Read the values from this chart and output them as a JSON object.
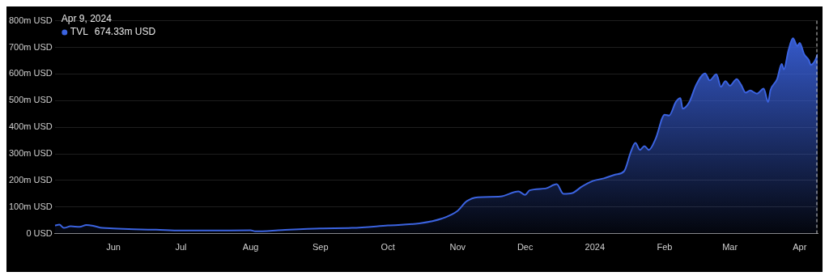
{
  "chart_data": {
    "type": "area",
    "x": [
      "2023-05-06",
      "2023-05-08",
      "2023-05-10",
      "2023-05-13",
      "2023-05-17",
      "2023-05-20",
      "2023-05-23",
      "2023-05-27",
      "2023-06-01",
      "2023-06-10",
      "2023-06-20",
      "2023-07-01",
      "2023-07-15",
      "2023-08-01",
      "2023-08-03",
      "2023-08-15",
      "2023-09-01",
      "2023-09-15",
      "2023-10-01",
      "2023-10-15",
      "2023-10-25",
      "2023-11-01",
      "2023-11-05",
      "2023-11-10",
      "2023-11-20",
      "2023-11-28",
      "2023-12-01",
      "2023-12-03",
      "2023-12-10",
      "2023-12-15",
      "2023-12-18",
      "2023-12-22",
      "2023-12-26",
      "2023-12-31",
      "2024-01-05",
      "2024-01-10",
      "2024-01-14",
      "2024-01-17",
      "2024-01-19",
      "2024-01-21",
      "2024-01-23",
      "2024-01-25",
      "2024-01-28",
      "2024-02-01",
      "2024-02-03",
      "2024-02-06",
      "2024-02-08",
      "2024-02-09",
      "2024-02-12",
      "2024-02-15",
      "2024-02-19",
      "2024-02-21",
      "2024-02-24",
      "2024-02-26",
      "2024-02-28",
      "2024-03-01",
      "2024-03-04",
      "2024-03-06",
      "2024-03-08",
      "2024-03-10",
      "2024-03-13",
      "2024-03-16",
      "2024-03-18",
      "2024-03-19",
      "2024-03-22",
      "2024-03-24",
      "2024-03-25",
      "2024-03-27",
      "2024-03-29",
      "2024-03-31",
      "2024-04-01",
      "2024-04-03",
      "2024-04-05",
      "2024-04-06",
      "2024-04-08",
      "2024-04-09"
    ],
    "legend": "top left",
    "series": [
      {
        "name": "TVL",
        "color": "#3b63e0",
        "values": [
          31,
          34,
          22,
          28,
          26,
          33,
          30,
          22,
          20,
          17,
          15,
          12,
          12,
          13,
          9,
          14,
          20,
          22,
          31,
          39,
          57,
          86,
          122,
          137,
          140,
          159,
          146,
          163,
          170,
          186,
          150,
          153,
          176,
          198,
          208,
          222,
          235,
          308,
          341,
          315,
          329,
          315,
          357,
          447,
          444,
          495,
          509,
          470,
          495,
          559,
          602,
          576,
          599,
          552,
          573,
          556,
          581,
          559,
          530,
          538,
          526,
          545,
          495,
          538,
          581,
          638,
          617,
          688,
          734,
          705,
          717,
          674,
          653,
          634,
          653,
          674.33
        ]
      }
    ],
    "xlim": [
      "2023-05-06",
      "2024-04-09"
    ],
    "xticks": [
      {
        "value": "2023-06-01",
        "label": "Jun"
      },
      {
        "value": "2023-07-01",
        "label": "Jul"
      },
      {
        "value": "2023-08-01",
        "label": "Aug"
      },
      {
        "value": "2023-09-01",
        "label": "Sep"
      },
      {
        "value": "2023-10-01",
        "label": "Oct"
      },
      {
        "value": "2023-11-01",
        "label": "Nov"
      },
      {
        "value": "2023-12-01",
        "label": "Dec"
      },
      {
        "value": "2024-01-01",
        "label": "2024"
      },
      {
        "value": "2024-02-01",
        "label": "Feb"
      },
      {
        "value": "2024-03-01",
        "label": "Mar"
      },
      {
        "value": "2024-04-01",
        "label": "Apr"
      }
    ],
    "ylim": [
      0,
      800
    ],
    "yticks": [
      {
        "value": 0,
        "label": "0 USD"
      },
      {
        "value": 100,
        "label": "100m USD"
      },
      {
        "value": 200,
        "label": "200m USD"
      },
      {
        "value": 300,
        "label": "300m USD"
      },
      {
        "value": 400,
        "label": "400m USD"
      },
      {
        "value": 500,
        "label": "500m USD"
      },
      {
        "value": 600,
        "label": "600m USD"
      },
      {
        "value": 700,
        "label": "700m USD"
      },
      {
        "value": 800,
        "label": "800m USD"
      }
    ],
    "grid": "y",
    "ref_lines": [
      {
        "axis": "x",
        "value": "2024-04-09",
        "color": "#cccccc",
        "line_style": "dashed"
      }
    ],
    "annotations": [
      "Apr 9, 2024",
      "674.33m USD"
    ]
  }
}
